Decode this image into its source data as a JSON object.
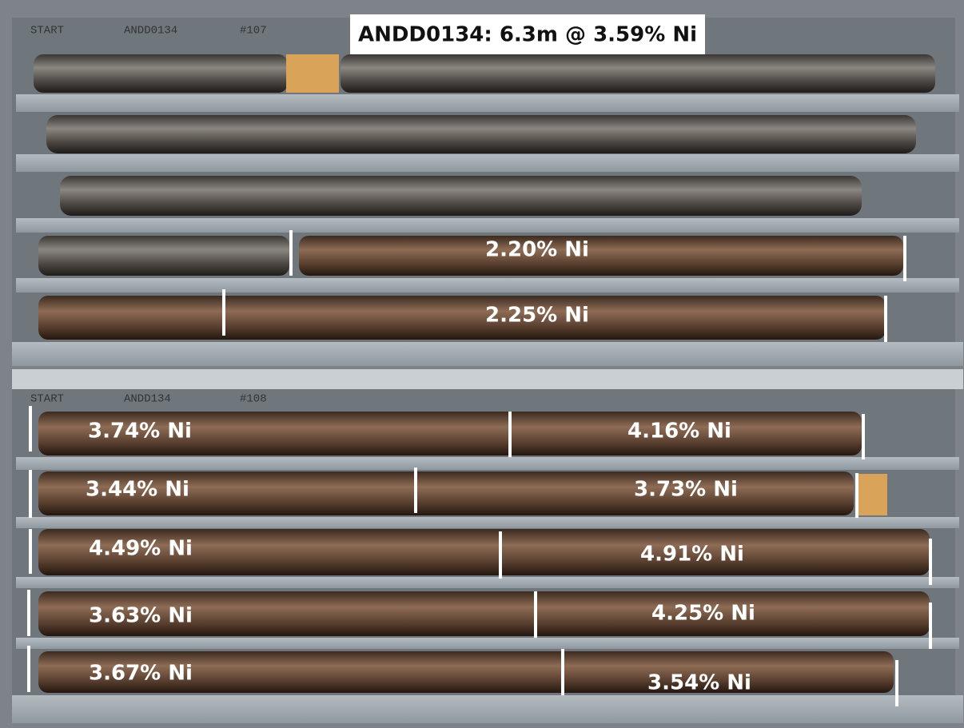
{
  "title": "ANDD0134: 6.3m @ 3.59% Ni",
  "tray_labels": [
    "START",
    "ANDD0134",
    "#107",
    "START",
    "ANDD134",
    "#108"
  ],
  "grade_labels": [
    "2.20% Ni",
    "2.25% Ni",
    "3.74% Ni",
    "4.16% Ni",
    "3.44% Ni",
    "3.73% Ni",
    "4.49% Ni",
    "4.91% Ni",
    "3.63% Ni",
    "4.25% Ni",
    "3.67% Ni",
    "3.54% Ni"
  ]
}
